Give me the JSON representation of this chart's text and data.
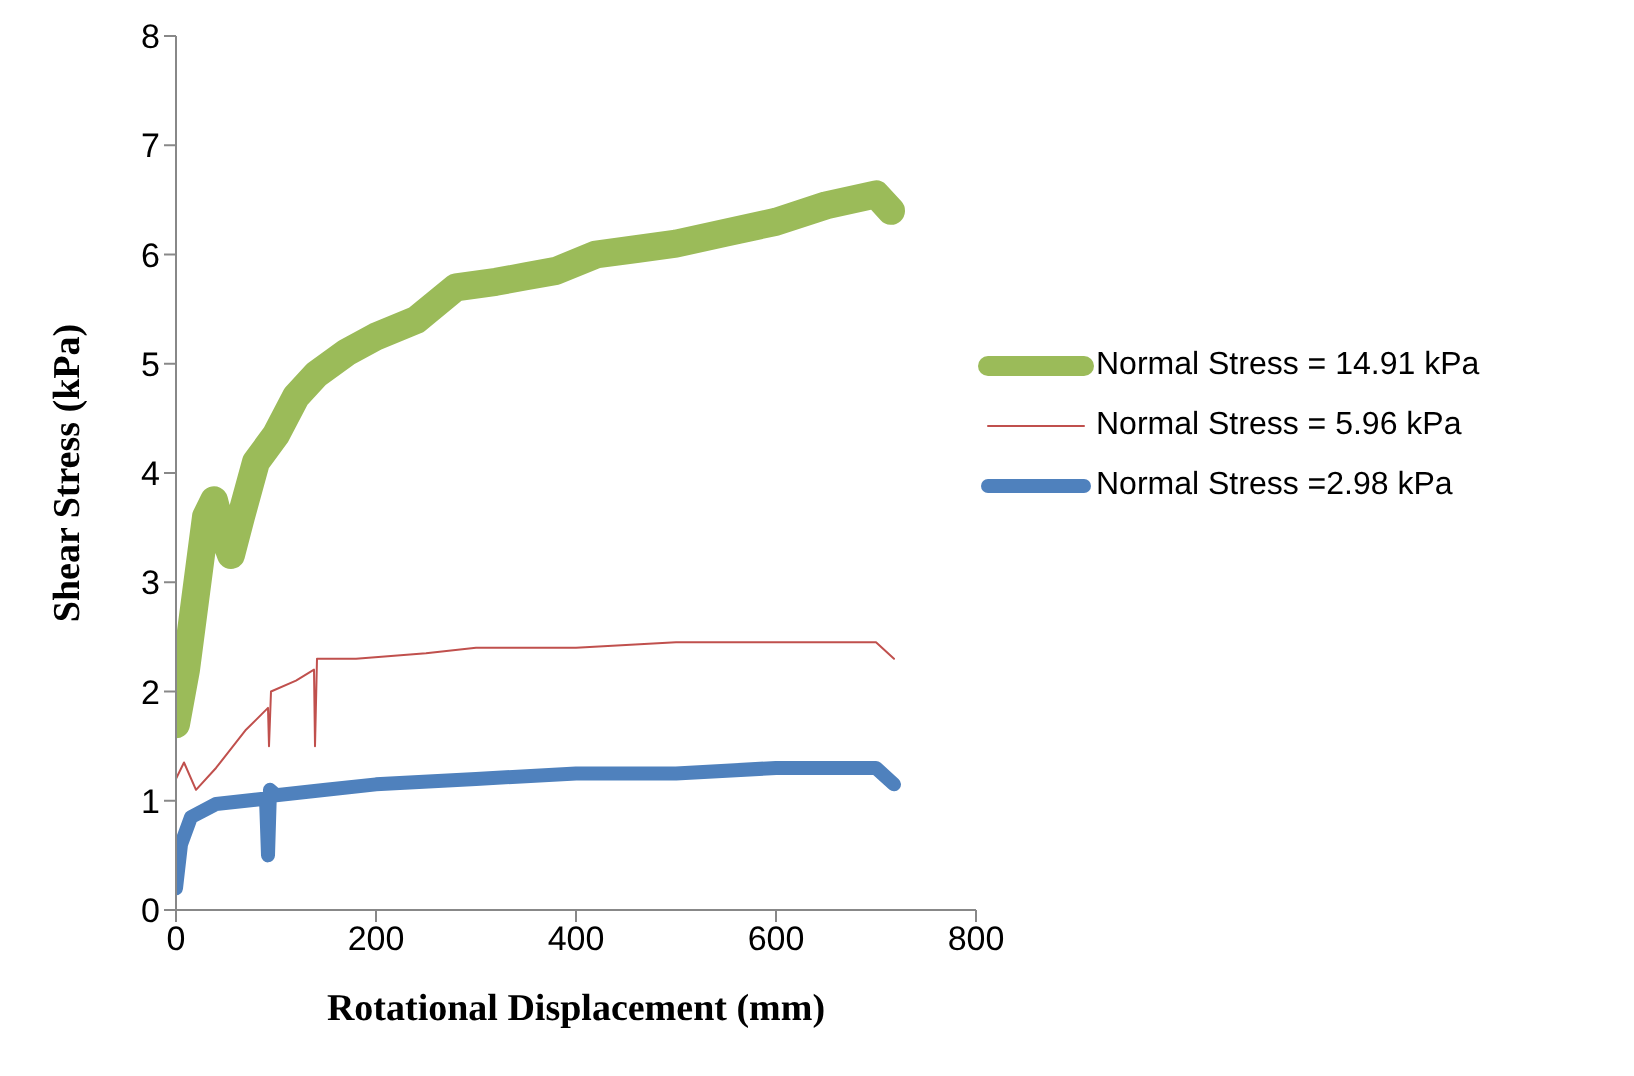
{
  "chart_data": {
    "type": "line",
    "xlabel": "Rotational Displacement (mm)",
    "ylabel": "Shear Stress (kPa)",
    "xlim": [
      0,
      800
    ],
    "xticks": [
      0,
      200,
      400,
      600,
      800
    ],
    "ylim": [
      0,
      8
    ],
    "yticks": [
      0,
      1,
      2,
      3,
      4,
      5,
      6,
      7,
      8
    ],
    "grid": false,
    "legend": "right",
    "marker": "none",
    "line_style": "solid",
    "series": [
      {
        "name": "Normal Stress = 14.91 kPa",
        "color": "#9bbb59",
        "x": [
          0,
          10,
          20,
          30,
          38,
          45,
          55,
          65,
          80,
          100,
          120,
          140,
          170,
          200,
          240,
          280,
          320,
          350,
          380,
          420,
          460,
          500,
          550,
          600,
          650,
          700,
          715
        ],
        "values": [
          1.7,
          2.2,
          2.9,
          3.6,
          3.75,
          3.5,
          3.25,
          3.6,
          4.1,
          4.35,
          4.7,
          4.9,
          5.1,
          5.25,
          5.4,
          5.7,
          5.75,
          5.8,
          5.85,
          6.0,
          6.05,
          6.1,
          6.2,
          6.3,
          6.45,
          6.55,
          6.4
        ]
      },
      {
        "name": "Normal Stress = 5.96 kPa",
        "color": "#c0504d",
        "x": [
          0,
          8,
          20,
          40,
          70,
          92,
          93,
          95,
          120,
          138,
          139,
          141,
          180,
          250,
          300,
          400,
          500,
          600,
          700,
          718
        ],
        "values": [
          1.2,
          1.35,
          1.1,
          1.3,
          1.65,
          1.85,
          1.5,
          2.0,
          2.1,
          2.2,
          1.5,
          2.3,
          2.3,
          2.35,
          2.4,
          2.4,
          2.45,
          2.45,
          2.45,
          2.3
        ]
      },
      {
        "name": "Normal Stress =2.98 kPa",
        "color": "#4f81bd",
        "x": [
          0,
          5,
          15,
          40,
          90,
          92,
          94,
          100,
          150,
          200,
          300,
          400,
          500,
          600,
          700,
          718
        ],
        "values": [
          0.2,
          0.6,
          0.85,
          0.97,
          1.02,
          0.5,
          1.1,
          1.05,
          1.1,
          1.15,
          1.2,
          1.25,
          1.25,
          1.3,
          1.3,
          1.15
        ]
      }
    ]
  }
}
